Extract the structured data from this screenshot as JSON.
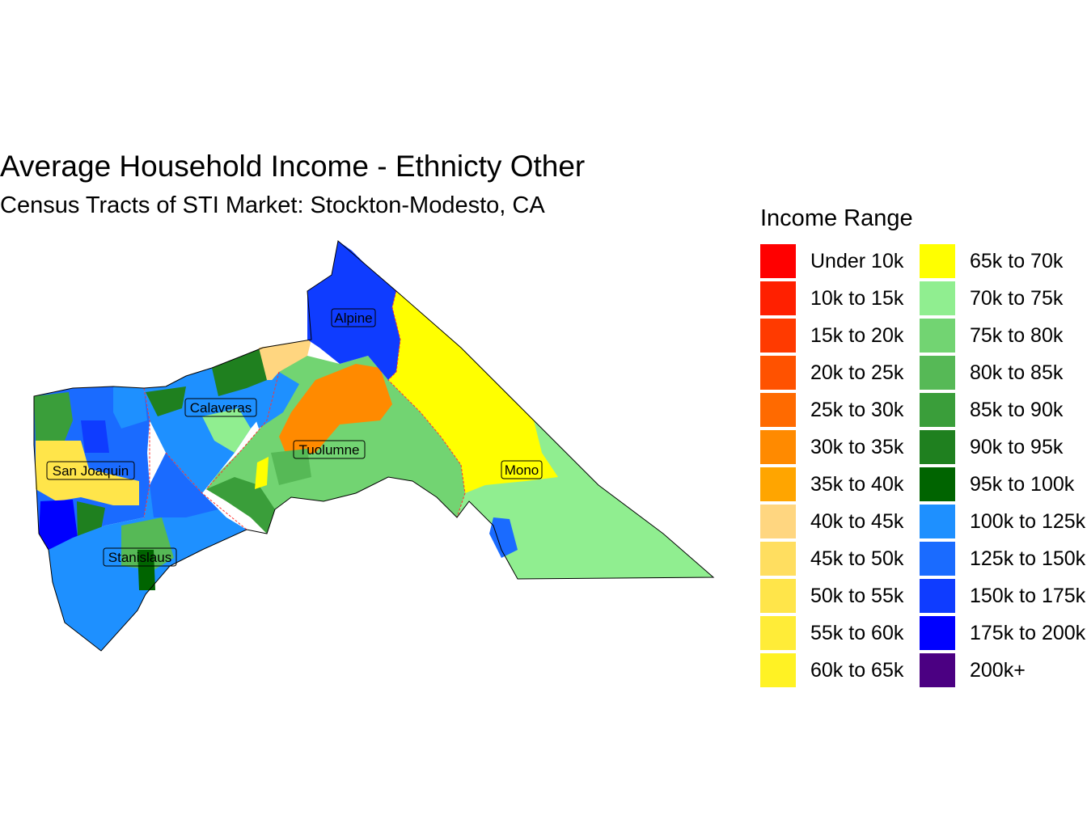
{
  "title": "Average Household Income - Ethnicty Other",
  "subtitle": "Census Tracts of STI Market: Stockton-Modesto, CA",
  "legend": {
    "title": "Income Range",
    "items": [
      {
        "label": "Under 10k",
        "color": "#ff0000"
      },
      {
        "label": "10k to 15k",
        "color": "#ff2000"
      },
      {
        "label": "15k to 20k",
        "color": "#ff3a00"
      },
      {
        "label": "20k to 25k",
        "color": "#ff5200"
      },
      {
        "label": "25k to 30k",
        "color": "#ff6a00"
      },
      {
        "label": "30k to 35k",
        "color": "#ff8a00"
      },
      {
        "label": "35k to 40k",
        "color": "#ffa500"
      },
      {
        "label": "40k to 45k",
        "color": "#ffd680"
      },
      {
        "label": "45k to 50k",
        "color": "#ffde60"
      },
      {
        "label": "50k to 55k",
        "color": "#ffe54a"
      },
      {
        "label": "55k to 60k",
        "color": "#ffec38"
      },
      {
        "label": "60k to 65k",
        "color": "#fff224"
      },
      {
        "label": "65k to 70k",
        "color": "#ffff00"
      },
      {
        "label": "70k to 75k",
        "color": "#90ee90"
      },
      {
        "label": "75k to 80k",
        "color": "#72d472"
      },
      {
        "label": "80k to 85k",
        "color": "#56b956"
      },
      {
        "label": "85k to 90k",
        "color": "#3a9e3a"
      },
      {
        "label": "90k to 95k",
        "color": "#1f801f"
      },
      {
        "label": "95k to 100k",
        "color": "#006400"
      },
      {
        "label": "100k to 125k",
        "color": "#1e90ff"
      },
      {
        "label": "125k to 150k",
        "color": "#1a6bff"
      },
      {
        "label": "150k to 175k",
        "color": "#0f3cff"
      },
      {
        "label": "175k to 200k",
        "color": "#0000ff"
      },
      {
        "label": "200k+",
        "color": "#4b0082"
      }
    ]
  },
  "counties": [
    {
      "name": "Alpine"
    },
    {
      "name": "Calaveras"
    },
    {
      "name": "San Joaquin"
    },
    {
      "name": "Tuolumne"
    },
    {
      "name": "Mono"
    },
    {
      "name": "Stanislaus"
    }
  ]
}
